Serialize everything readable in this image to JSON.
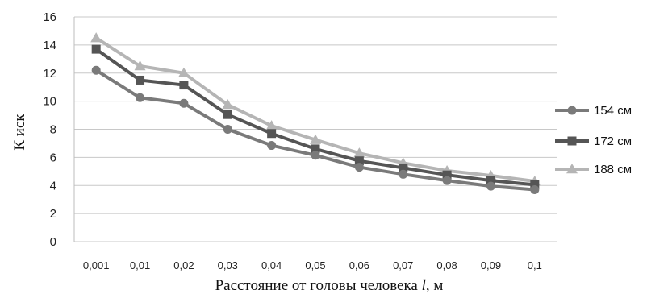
{
  "chart_data": {
    "type": "line",
    "title": "",
    "ylabel": "К иск",
    "xlabel_prefix": "Расстояние от головы человека ",
    "xlabel_var": "l",
    "xlabel_suffix": ", м",
    "categories": [
      "0,001",
      "0,01",
      "0,02",
      "0,03",
      "0,04",
      "0,05",
      "0,06",
      "0,07",
      "0,08",
      "0,09",
      "0,1"
    ],
    "ylim": [
      0,
      16
    ],
    "yticks": [
      "0",
      "2",
      "4",
      "6",
      "8",
      "10",
      "12",
      "14",
      "16"
    ],
    "grid": "horizontal",
    "legend_position": "right",
    "series": [
      {
        "name": "154 см",
        "marker": "circle",
        "color": "#7a7a7a",
        "values": [
          12.2,
          10.25,
          9.85,
          8.0,
          6.85,
          6.15,
          5.3,
          4.8,
          4.35,
          3.95,
          3.7
        ]
      },
      {
        "name": "172 см",
        "marker": "square",
        "color": "#555555",
        "values": [
          13.7,
          11.5,
          11.15,
          9.05,
          7.7,
          6.6,
          5.75,
          5.25,
          4.75,
          4.35,
          4.05
        ]
      },
      {
        "name": "188 см",
        "marker": "triangle",
        "color": "#b5b5b5",
        "values": [
          14.5,
          12.5,
          12.0,
          9.75,
          8.25,
          7.25,
          6.3,
          5.6,
          5.05,
          4.7,
          4.3
        ]
      }
    ]
  }
}
